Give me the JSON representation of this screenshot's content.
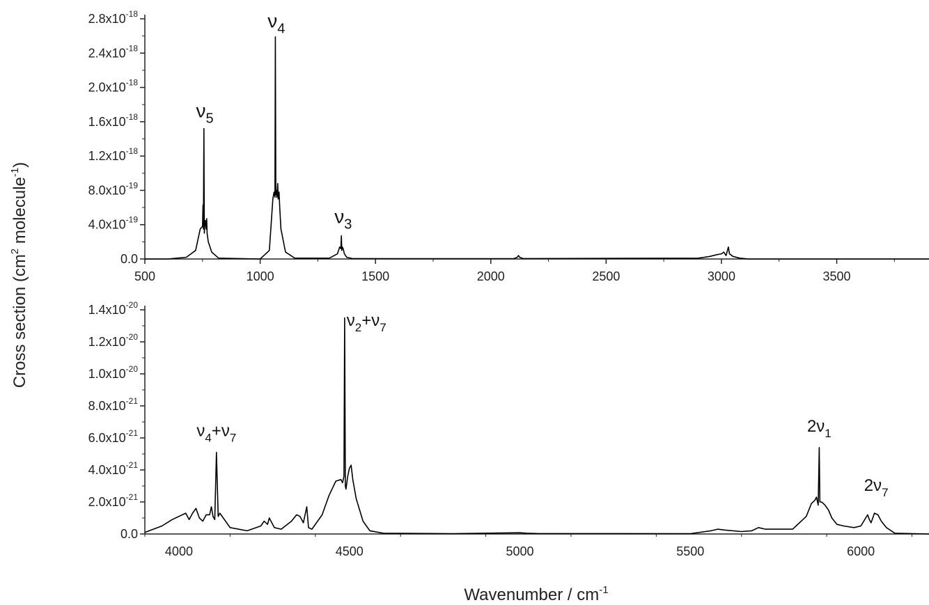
{
  "chart_data": [
    {
      "type": "line",
      "title": "",
      "xlabel": "",
      "ylabel": "",
      "xlim": [
        500,
        3900
      ],
      "ylim": [
        0,
        2.8e-18
      ],
      "grid": false,
      "xticks": [
        500,
        1000,
        1500,
        2000,
        2500,
        3000,
        3500
      ],
      "xtick_labels": [
        "500",
        "1000",
        "1500",
        "2000",
        "2500",
        "3000",
        "3500"
      ],
      "yticks": [
        0,
        4e-19,
        8e-19,
        1.2e-18,
        1.6e-18,
        2e-18,
        2.4e-18,
        2.8e-18
      ],
      "ytick_labels": [
        {
          "mantissa": "0.0",
          "exp": ""
        },
        {
          "mantissa": "4.0x10",
          "exp": "-19"
        },
        {
          "mantissa": "8.0x10",
          "exp": "-19"
        },
        {
          "mantissa": "1.2x10",
          "exp": "-18"
        },
        {
          "mantissa": "1.6x10",
          "exp": "-18"
        },
        {
          "mantissa": "2.0x10",
          "exp": "-18"
        },
        {
          "mantissa": "2.4x10",
          "exp": "-18"
        },
        {
          "mantissa": "2.8x10",
          "exp": "-18"
        }
      ],
      "series": [
        {
          "x": [
            500,
            600,
            680,
            720,
            740,
            750,
            752,
            754,
            756,
            758,
            760,
            762,
            764,
            766,
            768,
            770,
            775,
            790,
            820,
            1000,
            1040,
            1055,
            1060,
            1064,
            1066,
            1068,
            1070,
            1072,
            1074,
            1076,
            1078,
            1080,
            1082,
            1085,
            1090,
            1110,
            1150,
            1300,
            1335,
            1345,
            1350,
            1352,
            1354,
            1356,
            1360,
            1365,
            1375,
            1400,
            1600,
            2100,
            2115,
            2120,
            2125,
            2140,
            2900,
            2950,
            2980,
            3000,
            3010,
            3020,
            3030,
            3035,
            3040,
            3050,
            3080,
            3120,
            3900
          ],
          "y": [
            0,
            0,
            2e-20,
            1e-19,
            3.5e-19,
            3.8e-19,
            6.3e-19,
            3.5e-19,
            1.52e-18,
            3e-19,
            4.2e-19,
            4.5e-19,
            4e-19,
            3.5e-19,
            4.7e-19,
            3e-19,
            2e-19,
            8e-20,
            1e-20,
            0,
            1e-19,
            7e-19,
            7.8e-19,
            7.2e-19,
            2.59e-18,
            7.5e-19,
            8e-19,
            7.2e-19,
            7.8e-19,
            8.8e-19,
            7e-19,
            7.5e-19,
            7.8e-19,
            6e-19,
            3.5e-19,
            8e-20,
            1e-20,
            1e-20,
            6e-20,
            1.4e-19,
            1.2e-19,
            2.7e-19,
            1e-19,
            1.4e-19,
            1.2e-19,
            6e-20,
            2e-20,
            5e-21,
            3e-21,
            5e-21,
            2e-20,
            4e-20,
            2e-20,
            5e-21,
            1e-20,
            3e-20,
            5e-20,
            6e-20,
            8e-20,
            4e-20,
            1.4e-19,
            6e-20,
            5e-20,
            3e-20,
            1e-20,
            0,
            0
          ]
        }
      ],
      "annotations": [
        {
          "base": "ν",
          "sub": "5",
          "x": 760,
          "y": 1.65e-18
        },
        {
          "base": "ν",
          "sub": "4",
          "x": 1070,
          "y": 2.7e-18
        },
        {
          "base": "ν",
          "sub": "3",
          "x": 1360,
          "y": 4.2e-19
        }
      ]
    },
    {
      "type": "line",
      "title": "",
      "xlabel": "Wavenumber / cm",
      "xlabel_exp": "-1",
      "ylabel": "Cross section (cm",
      "ylabel_exp": "2",
      "ylabel_tail": " molecule",
      "ylabel_tail_exp": "-1",
      "ylabel_end": ")",
      "xlim": [
        3900,
        6200
      ],
      "ylim": [
        0,
        1.4e-20
      ],
      "grid": false,
      "xticks": [
        4000,
        4500,
        5000,
        5500,
        6000
      ],
      "xtick_labels": [
        "4000",
        "4500",
        "5000",
        "5500",
        "6000"
      ],
      "yticks": [
        0,
        2e-21,
        4e-21,
        6e-21,
        8e-21,
        1e-20,
        1.2e-20,
        1.4e-20
      ],
      "ytick_labels": [
        {
          "mantissa": "0.0",
          "exp": ""
        },
        {
          "mantissa": "2.0x10",
          "exp": "-21"
        },
        {
          "mantissa": "4.0x10",
          "exp": "-21"
        },
        {
          "mantissa": "6.0x10",
          "exp": "-21"
        },
        {
          "mantissa": "8.0x10",
          "exp": "-21"
        },
        {
          "mantissa": "1.0x10",
          "exp": "-20"
        },
        {
          "mantissa": "1.2x10",
          "exp": "-20"
        },
        {
          "mantissa": "1.4x10",
          "exp": "-20"
        }
      ],
      "series": [
        {
          "x": [
            3900,
            3950,
            3980,
            4000,
            4020,
            4030,
            4040,
            4050,
            4060,
            4070,
            4080,
            4090,
            4095,
            4100,
            4105,
            4110,
            4115,
            4120,
            4130,
            4150,
            4200,
            4240,
            4250,
            4260,
            4265,
            4270,
            4280,
            4300,
            4330,
            4345,
            4355,
            4365,
            4375,
            4380,
            4390,
            4420,
            4440,
            4460,
            4475,
            4480,
            4484,
            4486,
            4488,
            4490,
            4495,
            4500,
            4505,
            4510,
            4520,
            4540,
            4560,
            4600,
            4800,
            5000,
            5020,
            5050,
            5500,
            5560,
            5580,
            5600,
            5650,
            5680,
            5700,
            5720,
            5800,
            5840,
            5855,
            5865,
            5870,
            5875,
            5878,
            5880,
            5885,
            5895,
            5905,
            5915,
            5930,
            5950,
            5980,
            6000,
            6020,
            6025,
            6030,
            6040,
            6050,
            6060,
            6075,
            6100,
            6200
          ],
          "y": [
            1e-22,
            5e-22,
            9e-22,
            1.1e-21,
            1.3e-21,
            9e-22,
            1.3e-21,
            1.6e-21,
            1e-21,
            8e-22,
            1.2e-21,
            1.2e-21,
            1.7e-21,
            1.1e-21,
            9e-22,
            5.1e-21,
            1.1e-21,
            1.3e-21,
            1e-21,
            4e-22,
            2e-22,
            5e-22,
            8e-22,
            6e-22,
            1e-21,
            8e-22,
            4e-22,
            3e-22,
            8e-22,
            1.2e-21,
            1.1e-21,
            7e-22,
            1.7e-21,
            4e-22,
            3e-22,
            1.2e-21,
            2.4e-21,
            3.3e-21,
            3.4e-21,
            3.2e-21,
            3.6e-21,
            1.35e-20,
            3e-21,
            2.8e-21,
            3.6e-21,
            4.1e-21,
            4.3e-21,
            3.4e-21,
            2.2e-21,
            8e-22,
            2e-22,
            5e-23,
            2e-23,
            8e-23,
            5e-23,
            3e-23,
            2e-23,
            2e-22,
            3e-22,
            2.5e-22,
            1.5e-22,
            2e-22,
            4e-22,
            3e-22,
            3e-22,
            1.1e-21,
            1.9e-21,
            2.1e-21,
            2.3e-21,
            1.8e-21,
            5.4e-21,
            2e-21,
            2e-21,
            1.8e-21,
            1.5e-21,
            1e-21,
            6e-22,
            5e-22,
            4e-22,
            5e-22,
            1.2e-21,
            9e-22,
            7e-22,
            1.3e-21,
            1.2e-21,
            8e-22,
            4e-22,
            5e-23,
            0
          ]
        }
      ],
      "annotations": [
        {
          "base": "ν",
          "sub": "4",
          "mid": "+ν",
          "sub2": "7",
          "x": 4110,
          "y": 6.1e-21
        },
        {
          "base": "ν",
          "sub": "2",
          "mid": "+ν",
          "sub2": "7",
          "x": 4550,
          "y": 1.3e-20
        },
        {
          "base": "2ν",
          "sub": "1",
          "x": 5878,
          "y": 6.4e-21
        },
        {
          "base": "2ν",
          "sub": "7",
          "x": 6045,
          "y": 2.7e-21
        }
      ]
    }
  ]
}
